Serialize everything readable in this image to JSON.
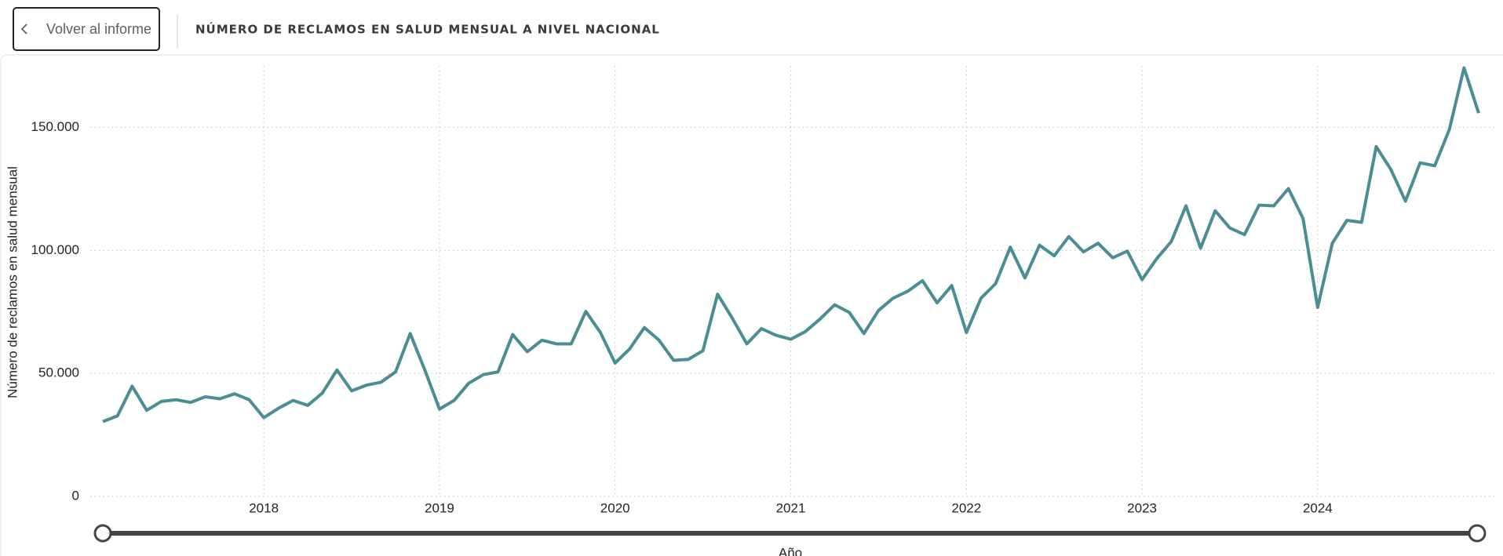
{
  "header": {
    "back_button": "Volver al informe",
    "title": "NÚMERO DE RECLAMOS EN SALUD MENSUAL A NIVEL NACIONAL"
  },
  "chart_data": {
    "type": "line",
    "x_label": "Año",
    "y_label": "Número de reclamos en salud mensual",
    "color": "#4a8e93",
    "grid": true,
    "categories": [
      null,
      null,
      null,
      null,
      null,
      null,
      null,
      null,
      null,
      null,
      null,
      "2018",
      null,
      null,
      null,
      null,
      null,
      null,
      null,
      null,
      null,
      null,
      null,
      "2019",
      null,
      null,
      null,
      null,
      null,
      null,
      null,
      null,
      null,
      null,
      null,
      "2020",
      null,
      null,
      null,
      null,
      null,
      null,
      null,
      null,
      null,
      null,
      null,
      "2021",
      null,
      null,
      null,
      null,
      null,
      null,
      null,
      null,
      null,
      null,
      null,
      "2022",
      null,
      null,
      null,
      null,
      null,
      null,
      null,
      null,
      null,
      null,
      null,
      "2023",
      null,
      null,
      null,
      null,
      null,
      null,
      null,
      null,
      null,
      null,
      null,
      "2024",
      null,
      null,
      null,
      null,
      null,
      null,
      null,
      null,
      null,
      null,
      null
    ],
    "values": [
      30400,
      32700,
      44800,
      35000,
      38600,
      39300,
      38200,
      40500,
      39700,
      41700,
      39300,
      32000,
      35800,
      39000,
      37000,
      42000,
      51400,
      42900,
      45200,
      46400,
      50600,
      66200,
      51400,
      35500,
      39000,
      46000,
      49500,
      50600,
      65800,
      58800,
      63500,
      62000,
      62000,
      75200,
      66600,
      54200,
      60000,
      68600,
      63500,
      55300,
      55700,
      59200,
      82200,
      72500,
      62000,
      68200,
      65500,
      63900,
      67000,
      72100,
      77900,
      74800,
      66200,
      75600,
      80600,
      83400,
      87700,
      78700,
      85700,
      66600,
      80600,
      86500,
      101300,
      88800,
      102100,
      97800,
      105600,
      99400,
      102900,
      97000,
      99700,
      88100,
      96600,
      103600,
      118100,
      100900,
      116100,
      109100,
      106400,
      118400,
      118100,
      125100,
      113000,
      76800,
      102900,
      112200,
      111400,
      142200,
      132900,
      120000,
      135600,
      134400,
      149200,
      174200,
      155800
    ],
    "ylim": [
      0,
      175000
    ],
    "yticks": [
      0,
      {
        "value": 50000,
        "label": "50.000"
      },
      {
        "value": 100000,
        "label": "100.000"
      },
      {
        "value": 150000,
        "label": "150.000"
      }
    ]
  }
}
